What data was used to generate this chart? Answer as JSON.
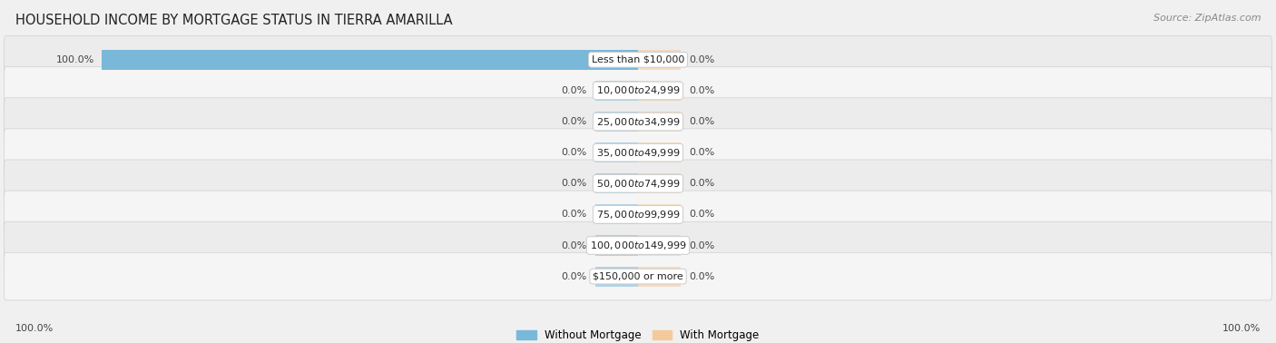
{
  "title": "HOUSEHOLD INCOME BY MORTGAGE STATUS IN TIERRA AMARILLA",
  "source": "Source: ZipAtlas.com",
  "categories": [
    "Less than $10,000",
    "$10,000 to $24,999",
    "$25,000 to $34,999",
    "$35,000 to $49,999",
    "$50,000 to $74,999",
    "$75,000 to $99,999",
    "$100,000 to $149,999",
    "$150,000 or more"
  ],
  "without_mortgage": [
    100.0,
    0.0,
    0.0,
    0.0,
    0.0,
    0.0,
    0.0,
    0.0
  ],
  "with_mortgage": [
    0.0,
    0.0,
    0.0,
    0.0,
    0.0,
    0.0,
    0.0,
    0.0
  ],
  "without_mortgage_color": "#7ab8d9",
  "with_mortgage_color": "#f5c99a",
  "row_bg_even": "#ececec",
  "row_bg_odd": "#f5f5f5",
  "fig_bg": "#f0f0f0",
  "axis_max": 100.0,
  "min_bar_display": 8.0,
  "legend_without": "Without Mortgage",
  "legend_with": "With Mortgage",
  "title_fontsize": 10.5,
  "label_fontsize": 8.0,
  "cat_fontsize": 8.0,
  "source_fontsize": 8.0,
  "bottom_left_label": "100.0%",
  "bottom_right_label": "100.0%"
}
